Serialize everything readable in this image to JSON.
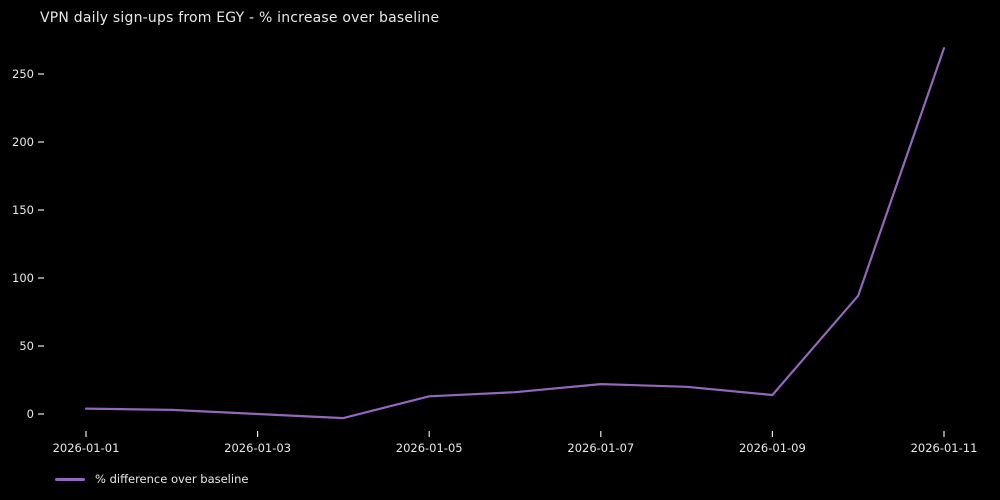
{
  "title": "VPN daily sign-ups from EGY - % increase over baseline",
  "legend": {
    "label": "% difference over baseline"
  },
  "colors": {
    "background": "#000000",
    "text": "#e8e8e8",
    "line": "#9467bd"
  },
  "chart_data": {
    "type": "line",
    "title": "VPN daily sign-ups from EGY - % increase over baseline",
    "x": [
      "2026-01-01",
      "2026-01-02",
      "2026-01-03",
      "2026-01-04",
      "2026-01-05",
      "2026-01-06",
      "2026-01-07",
      "2026-01-08",
      "2026-01-09",
      "2026-01-10",
      "2026-01-11"
    ],
    "series": [
      {
        "name": "% difference over baseline",
        "values": [
          4,
          3,
          0,
          -3,
          13,
          16,
          22,
          20,
          14,
          87,
          269
        ]
      }
    ],
    "xlabel": "",
    "ylabel": "",
    "y_ticks": [
      0,
      50,
      100,
      150,
      200,
      250
    ],
    "x_tick_labels": [
      "2026-01-01",
      "2026-01-03",
      "2026-01-05",
      "2026-01-07",
      "2026-01-09",
      "2026-01-11"
    ],
    "x_tick_indices": [
      0,
      2,
      4,
      6,
      8,
      10
    ],
    "ylim": [
      -17,
      283
    ],
    "grid": false,
    "legend_position": "lower-left-outside"
  }
}
